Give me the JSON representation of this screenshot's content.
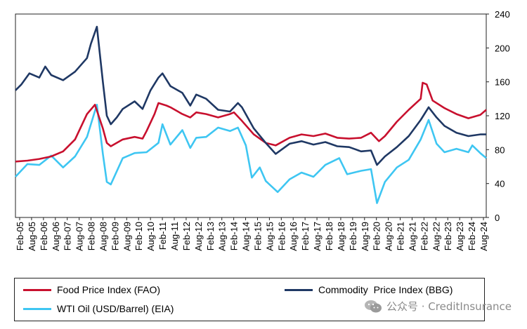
{
  "chart_data": {
    "type": "line",
    "title": "",
    "xlabel": "",
    "ylabel": "",
    "ylim": [
      0,
      240
    ],
    "yticks": [
      0,
      40,
      80,
      120,
      160,
      200,
      240
    ],
    "y_axis_side": "right",
    "x_tick_labels": [
      "Feb-05",
      "Aug-05",
      "Feb-06",
      "Aug-06",
      "Feb-07",
      "Aug-07",
      "Feb-08",
      "Aug-08",
      "Feb-09",
      "Aug-09",
      "Feb-10",
      "Aug-10",
      "Feb-11",
      "Aug-11",
      "Feb-12",
      "Aug-12",
      "Feb-13",
      "Aug-13",
      "Feb-14",
      "Aug-14",
      "Feb-15",
      "Aug-15",
      "Feb-16",
      "Aug-16",
      "Feb-17",
      "Aug-17",
      "Feb-18",
      "Aug-18",
      "Feb-19",
      "Aug-19",
      "Feb-20",
      "Aug-20",
      "Feb-21",
      "Aug-21",
      "Feb-22",
      "Aug-22",
      "Feb-23",
      "Aug-23",
      "Feb-24",
      "Aug-24"
    ],
    "x_range": [
      "2005-02",
      "2024-11"
    ],
    "grid": false,
    "legend_position": "bottom",
    "series": [
      {
        "name": "Food Price Index (FAO)",
        "color": "#c8102e",
        "points": [
          [
            "2005-02",
            66
          ],
          [
            "2005-08",
            67
          ],
          [
            "2006-02",
            69
          ],
          [
            "2006-08",
            72
          ],
          [
            "2007-02",
            78
          ],
          [
            "2007-08",
            92
          ],
          [
            "2008-02",
            122
          ],
          [
            "2008-06",
            133
          ],
          [
            "2008-10",
            105
          ],
          [
            "2008-12",
            88
          ],
          [
            "2009-02",
            84
          ],
          [
            "2009-08",
            92
          ],
          [
            "2010-02",
            95
          ],
          [
            "2010-06",
            93
          ],
          [
            "2010-08",
            102
          ],
          [
            "2010-12",
            122
          ],
          [
            "2011-02",
            135
          ],
          [
            "2011-06",
            132
          ],
          [
            "2011-08",
            130
          ],
          [
            "2012-02",
            122
          ],
          [
            "2012-06",
            118
          ],
          [
            "2012-09",
            124
          ],
          [
            "2013-02",
            122
          ],
          [
            "2013-08",
            118
          ],
          [
            "2014-02",
            122
          ],
          [
            "2014-04",
            124
          ],
          [
            "2014-08",
            114
          ],
          [
            "2015-02",
            98
          ],
          [
            "2015-08",
            88
          ],
          [
            "2016-01",
            85
          ],
          [
            "2016-08",
            94
          ],
          [
            "2017-02",
            98
          ],
          [
            "2017-08",
            96
          ],
          [
            "2018-02",
            99
          ],
          [
            "2018-08",
            94
          ],
          [
            "2019-02",
            93
          ],
          [
            "2019-08",
            94
          ],
          [
            "2020-01",
            100
          ],
          [
            "2020-05",
            90
          ],
          [
            "2020-08",
            96
          ],
          [
            "2021-02",
            113
          ],
          [
            "2021-08",
            127
          ],
          [
            "2022-02",
            140
          ],
          [
            "2022-03",
            159
          ],
          [
            "2022-05",
            157
          ],
          [
            "2022-08",
            138
          ],
          [
            "2023-02",
            129
          ],
          [
            "2023-08",
            122
          ],
          [
            "2024-02",
            117
          ],
          [
            "2024-08",
            121
          ],
          [
            "2024-11",
            127
          ]
        ]
      },
      {
        "name": "Commodity  Price Index (BBG)",
        "color": "#1f3864",
        "points": [
          [
            "2005-02",
            150
          ],
          [
            "2005-05",
            157
          ],
          [
            "2005-09",
            170
          ],
          [
            "2006-02",
            165
          ],
          [
            "2006-05",
            178
          ],
          [
            "2006-08",
            168
          ],
          [
            "2007-02",
            162
          ],
          [
            "2007-08",
            172
          ],
          [
            "2008-02",
            188
          ],
          [
            "2008-04",
            205
          ],
          [
            "2008-07",
            225
          ],
          [
            "2008-10",
            160
          ],
          [
            "2008-12",
            120
          ],
          [
            "2009-02",
            110
          ],
          [
            "2009-05",
            118
          ],
          [
            "2009-08",
            128
          ],
          [
            "2010-02",
            137
          ],
          [
            "2010-06",
            128
          ],
          [
            "2010-10",
            150
          ],
          [
            "2011-02",
            165
          ],
          [
            "2011-04",
            170
          ],
          [
            "2011-08",
            155
          ],
          [
            "2012-02",
            147
          ],
          [
            "2012-06",
            132
          ],
          [
            "2012-09",
            145
          ],
          [
            "2013-02",
            140
          ],
          [
            "2013-08",
            127
          ],
          [
            "2014-02",
            125
          ],
          [
            "2014-06",
            135
          ],
          [
            "2014-08",
            130
          ],
          [
            "2015-02",
            105
          ],
          [
            "2015-08",
            88
          ],
          [
            "2016-01",
            75
          ],
          [
            "2016-08",
            87
          ],
          [
            "2017-02",
            90
          ],
          [
            "2017-08",
            86
          ],
          [
            "2018-02",
            89
          ],
          [
            "2018-08",
            84
          ],
          [
            "2019-02",
            83
          ],
          [
            "2019-08",
            78
          ],
          [
            "2020-01",
            79
          ],
          [
            "2020-04",
            62
          ],
          [
            "2020-08",
            72
          ],
          [
            "2021-02",
            83
          ],
          [
            "2021-08",
            96
          ],
          [
            "2022-02",
            115
          ],
          [
            "2022-06",
            130
          ],
          [
            "2022-10",
            118
          ],
          [
            "2023-02",
            108
          ],
          [
            "2023-08",
            100
          ],
          [
            "2024-02",
            96
          ],
          [
            "2024-08",
            98
          ],
          [
            "2024-11",
            98
          ]
        ]
      },
      {
        "name": "WTI Oil (USD/Barrel) (EIA)",
        "color": "#3ec6f2",
        "points": [
          [
            "2005-02",
            48
          ],
          [
            "2005-08",
            63
          ],
          [
            "2006-02",
            62
          ],
          [
            "2006-08",
            73
          ],
          [
            "2007-02",
            59
          ],
          [
            "2007-08",
            72
          ],
          [
            "2008-02",
            95
          ],
          [
            "2008-07",
            133
          ],
          [
            "2008-10",
            75
          ],
          [
            "2008-12",
            42
          ],
          [
            "2009-02",
            39
          ],
          [
            "2009-08",
            70
          ],
          [
            "2010-02",
            76
          ],
          [
            "2010-08",
            77
          ],
          [
            "2011-02",
            88
          ],
          [
            "2011-04",
            110
          ],
          [
            "2011-08",
            86
          ],
          [
            "2012-02",
            103
          ],
          [
            "2012-06",
            82
          ],
          [
            "2012-09",
            94
          ],
          [
            "2013-02",
            95
          ],
          [
            "2013-08",
            106
          ],
          [
            "2014-02",
            102
          ],
          [
            "2014-06",
            106
          ],
          [
            "2014-10",
            85
          ],
          [
            "2015-01",
            47
          ],
          [
            "2015-05",
            59
          ],
          [
            "2015-08",
            43
          ],
          [
            "2016-02",
            30
          ],
          [
            "2016-08",
            45
          ],
          [
            "2017-02",
            53
          ],
          [
            "2017-08",
            48
          ],
          [
            "2018-02",
            62
          ],
          [
            "2018-09",
            70
          ],
          [
            "2019-01",
            51
          ],
          [
            "2019-08",
            55
          ],
          [
            "2020-01",
            57
          ],
          [
            "2020-04",
            17
          ],
          [
            "2020-08",
            42
          ],
          [
            "2021-02",
            59
          ],
          [
            "2021-08",
            68
          ],
          [
            "2022-02",
            92
          ],
          [
            "2022-06",
            115
          ],
          [
            "2022-10",
            87
          ],
          [
            "2023-02",
            77
          ],
          [
            "2023-08",
            81
          ],
          [
            "2024-02",
            77
          ],
          [
            "2024-04",
            85
          ],
          [
            "2024-08",
            76
          ],
          [
            "2024-11",
            70
          ]
        ]
      }
    ]
  },
  "legend": {
    "food": "Food Price Index (FAO)",
    "commodity": "Commodity  Price Index (BBG)",
    "oil": "WTI Oil (USD/Barrel) (EIA)"
  },
  "watermark": {
    "text": "公众号 · CreditInsurance",
    "icon": "wechat-icon"
  }
}
